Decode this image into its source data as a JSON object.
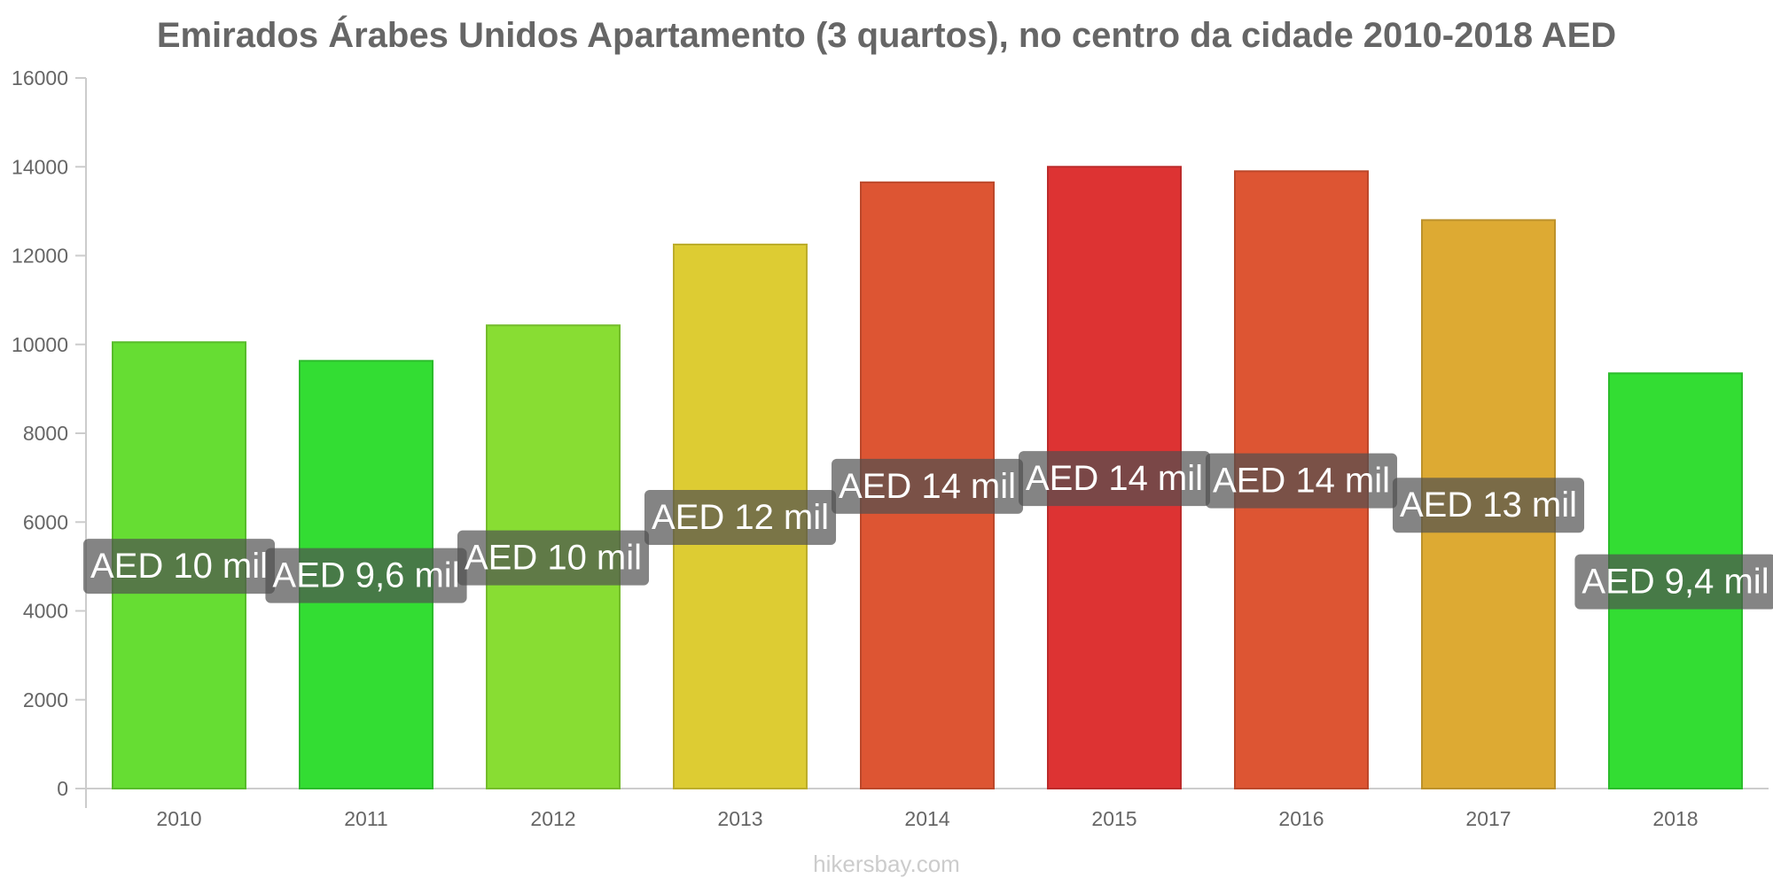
{
  "chart_data": {
    "type": "bar",
    "title": "Emirados Árabes Unidos Apartamento (3 quartos), no centro da cidade 2010-2018 AED",
    "categories": [
      "2010",
      "2011",
      "2012",
      "2013",
      "2014",
      "2015",
      "2016",
      "2017",
      "2018"
    ],
    "values": [
      10050,
      9630,
      10430,
      12250,
      13650,
      14000,
      13900,
      12800,
      9350
    ],
    "data_labels": [
      "AED 10 mil",
      "AED 9,6 mil",
      "AED 10 mil",
      "AED 12 mil",
      "AED 14 mil",
      "AED 14 mil",
      "AED 14 mil",
      "AED 13 mil",
      "AED 9,4 mil"
    ],
    "bar_colors": [
      "#66dd33",
      "#33dd33",
      "#88dd33",
      "#ddcc33",
      "#dd5533",
      "#dd3333",
      "#dd5533",
      "#ddaa33",
      "#33dd33"
    ],
    "y_ticks": [
      "0",
      "2000",
      "4000",
      "6000",
      "8000",
      "10000",
      "12000",
      "14000",
      "16000"
    ],
    "ylim": [
      0,
      16000
    ],
    "xlabel": "",
    "ylabel": "",
    "grid": false,
    "legend": "none"
  },
  "watermark": "hikersbay.com"
}
